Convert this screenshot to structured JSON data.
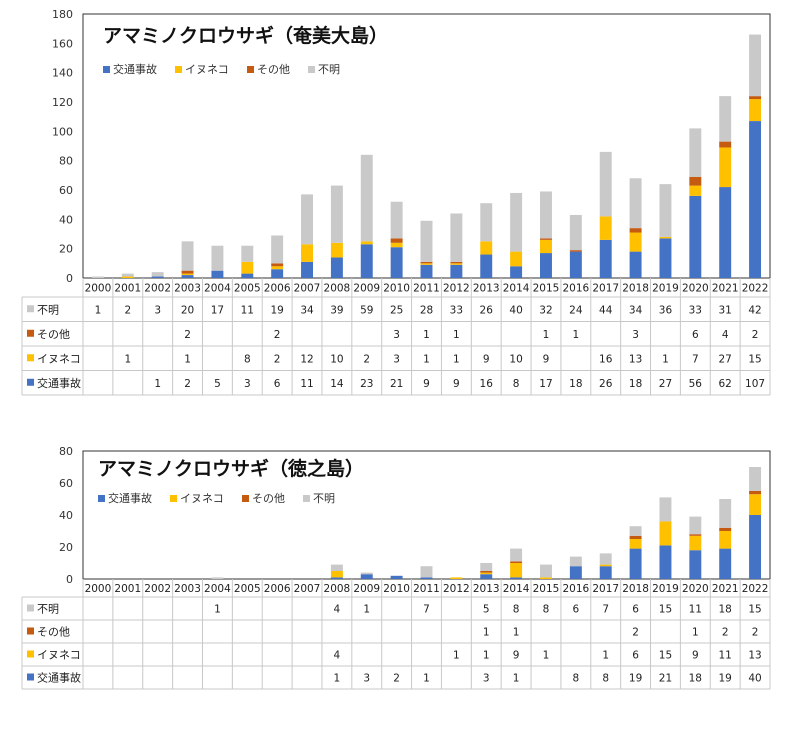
{
  "legend_labels": [
    "交通事故",
    "イヌネコ",
    "その他",
    "不明"
  ],
  "colors": {
    "交通事故": "#4472C4",
    "イヌネコ": "#FFC000",
    "その他": "#C55A11",
    "不明": "#C9C9C9"
  },
  "chart_data": [
    {
      "type": "bar",
      "stacked": true,
      "title": "アマミノクロウサギ（奄美大島）",
      "categories": [
        "2000",
        "2001",
        "2002",
        "2003",
        "2004",
        "2005",
        "2006",
        "2007",
        "2008",
        "2009",
        "2010",
        "2011",
        "2012",
        "2013",
        "2014",
        "2015",
        "2016",
        "2017",
        "2018",
        "2019",
        "2020",
        "2021",
        "2022"
      ],
      "ylim": [
        0,
        180
      ],
      "yticks": [
        0,
        20,
        40,
        60,
        80,
        100,
        120,
        140,
        160,
        180
      ],
      "legend": "top-left",
      "series": [
        {
          "name": "交通事故",
          "values": [
            null,
            null,
            1,
            2,
            5,
            3,
            6,
            11,
            14,
            23,
            21,
            9,
            9,
            16,
            8,
            17,
            18,
            26,
            18,
            27,
            56,
            62,
            107
          ]
        },
        {
          "name": "イヌネコ",
          "values": [
            null,
            1,
            null,
            1,
            null,
            8,
            2,
            12,
            10,
            2,
            3,
            1,
            1,
            9,
            10,
            9,
            null,
            16,
            13,
            1,
            7,
            27,
            15
          ]
        },
        {
          "name": "その他",
          "values": [
            null,
            null,
            null,
            2,
            null,
            null,
            2,
            null,
            null,
            null,
            3,
            1,
            1,
            null,
            null,
            1,
            1,
            null,
            3,
            null,
            6,
            4,
            2
          ]
        },
        {
          "name": "不明",
          "values": [
            1,
            2,
            3,
            20,
            17,
            11,
            19,
            34,
            39,
            59,
            25,
            28,
            33,
            26,
            40,
            32,
            24,
            44,
            34,
            36,
            33,
            31,
            42
          ]
        }
      ]
    },
    {
      "type": "bar",
      "stacked": true,
      "title": "アマミノクロウサギ（徳之島）",
      "categories": [
        "2000",
        "2001",
        "2002",
        "2003",
        "2004",
        "2005",
        "2006",
        "2007",
        "2008",
        "2009",
        "2010",
        "2011",
        "2012",
        "2013",
        "2014",
        "2015",
        "2016",
        "2017",
        "2018",
        "2019",
        "2020",
        "2021",
        "2022"
      ],
      "ylim": [
        0,
        80
      ],
      "yticks": [
        0,
        20,
        40,
        60,
        80
      ],
      "legend": "top-left",
      "series": [
        {
          "name": "交通事故",
          "values": [
            null,
            null,
            null,
            null,
            null,
            null,
            null,
            null,
            1,
            3,
            2,
            1,
            null,
            3,
            1,
            null,
            8,
            8,
            19,
            21,
            18,
            19,
            40
          ]
        },
        {
          "name": "イヌネコ",
          "values": [
            null,
            null,
            null,
            null,
            null,
            null,
            null,
            null,
            4,
            null,
            null,
            null,
            1,
            1,
            9,
            1,
            null,
            1,
            6,
            15,
            9,
            11,
            13
          ]
        },
        {
          "name": "その他",
          "values": [
            null,
            null,
            null,
            null,
            null,
            null,
            null,
            null,
            null,
            null,
            null,
            null,
            null,
            1,
            1,
            null,
            null,
            null,
            2,
            null,
            1,
            2,
            2
          ]
        },
        {
          "name": "不明",
          "values": [
            null,
            null,
            null,
            null,
            1,
            null,
            null,
            null,
            4,
            1,
            null,
            7,
            null,
            5,
            8,
            8,
            6,
            7,
            6,
            15,
            11,
            18,
            15
          ]
        }
      ]
    }
  ]
}
